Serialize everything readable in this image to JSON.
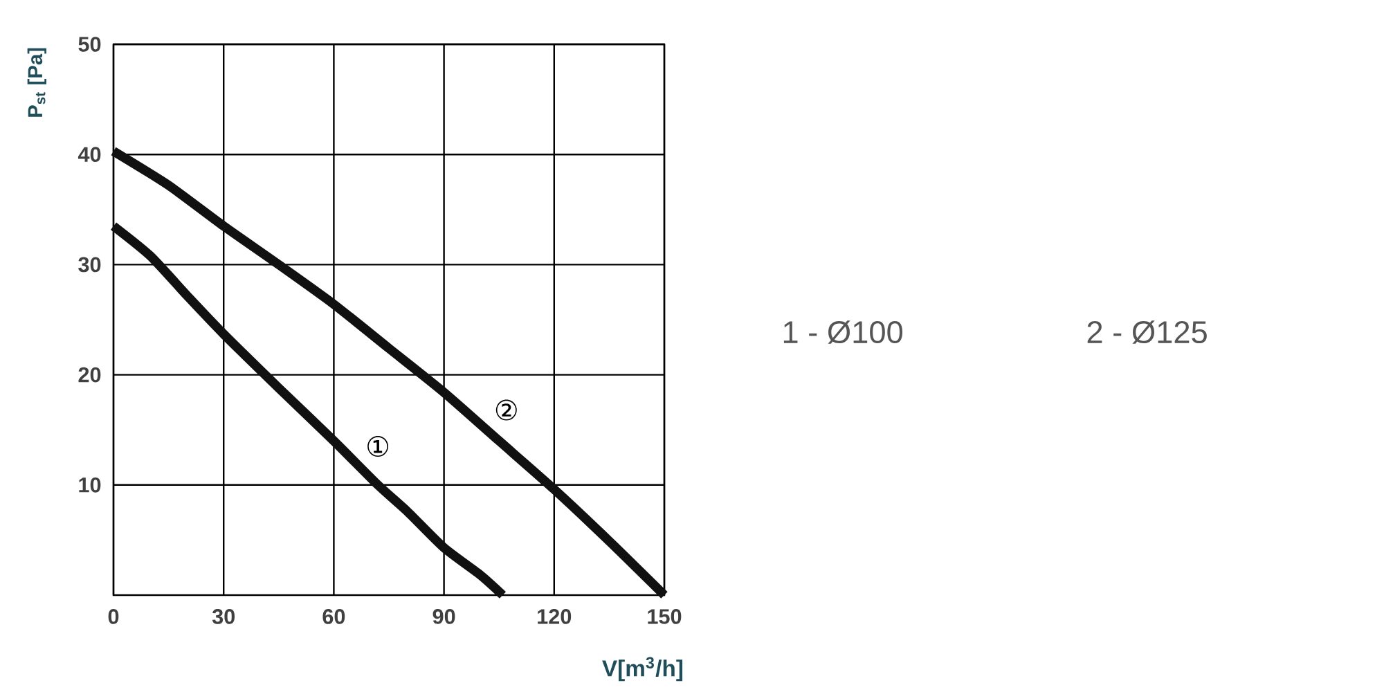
{
  "chart_data": {
    "type": "line",
    "xlabel": "V[m$^{3}$/h]",
    "ylabel": "P$_{st}$ [Pa]",
    "xlim": [
      0,
      150
    ],
    "ylim": [
      0,
      50
    ],
    "xticks": [
      0,
      30,
      60,
      90,
      120,
      150
    ],
    "yticks": [
      10,
      20,
      30,
      40,
      50
    ],
    "grid": true,
    "series": [
      {
        "color": "#111111",
        "x": [
          0,
          10,
          20,
          30,
          45,
          60,
          72,
          80,
          90,
          100,
          106
        ],
        "values": [
          33.5,
          30.8,
          27.2,
          23.7,
          18.8,
          14,
          10,
          7.6,
          4.3,
          1.8,
          0
        ]
      },
      {
        "color": "#111111",
        "x": [
          0,
          15,
          30,
          45,
          60,
          75,
          90,
          105,
          120,
          135,
          150
        ],
        "values": [
          40.3,
          37.2,
          33.5,
          30,
          26.4,
          22.4,
          18.4,
          14,
          9.6,
          4.9,
          0
        ]
      }
    ],
    "annotations": [
      {
        "text": "①",
        "x": 72,
        "y": 13.5
      },
      {
        "text": "②",
        "x": 107,
        "y": 16.8
      },
      "1 - Ø100",
      "2 - Ø125"
    ]
  }
}
